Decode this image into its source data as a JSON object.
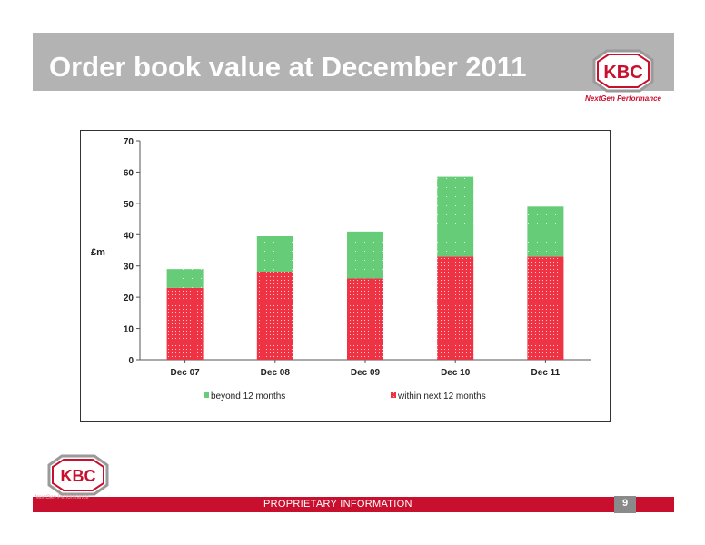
{
  "slide": {
    "title": "Order book value at December 2011",
    "footer": "PROPRIETARY INFORMATION",
    "page_number": "9"
  },
  "logo": {
    "text": "KBC",
    "tagline": "NextGen Performance",
    "icon": "kbc-hexagon-logo",
    "color": "#c8102e"
  },
  "colors": {
    "title_band": "#b3b3b3",
    "footer_band": "#c8102e",
    "beyond": "#66cc77",
    "within": "#ee3344"
  },
  "chart_data": {
    "type": "bar",
    "stacked": true,
    "categories": [
      "Dec 07",
      "Dec 08",
      "Dec 09",
      "Dec 10",
      "Dec 11"
    ],
    "series": [
      {
        "name": "within next 12 months",
        "values": [
          23,
          28,
          26,
          33,
          33
        ],
        "color": "#ee3344"
      },
      {
        "name": "beyond 12 months",
        "values": [
          6,
          11.5,
          15,
          25.5,
          16
        ],
        "color": "#66cc77"
      }
    ],
    "ylabel": "£m",
    "ylim": [
      0,
      70
    ],
    "yticks": [
      "0",
      "10",
      "20",
      "30",
      "40",
      "50",
      "60",
      "70"
    ],
    "legend": [
      "beyond 12 months",
      "within next 12 months"
    ],
    "legend_position": "bottom",
    "grid": false
  }
}
